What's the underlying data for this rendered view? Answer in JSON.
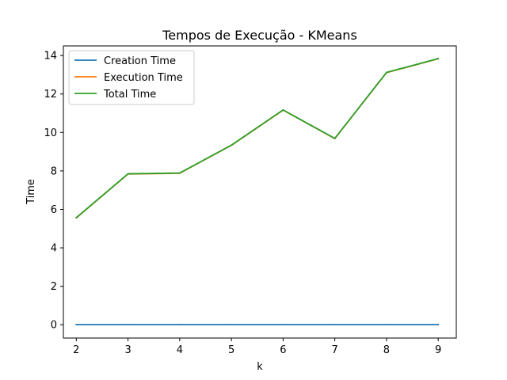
{
  "chart_data": {
    "type": "line",
    "title": "Tempos de Execução - KMeans",
    "xlabel": "k",
    "ylabel": "Time",
    "x": [
      2,
      3,
      4,
      5,
      6,
      7,
      8,
      9
    ],
    "xlim": [
      1.75,
      9.35
    ],
    "ylim": [
      -0.69,
      14.5
    ],
    "xticks": [
      2,
      3,
      4,
      5,
      6,
      7,
      8,
      9
    ],
    "yticks": [
      0,
      2,
      4,
      6,
      8,
      10,
      12,
      14
    ],
    "grid": false,
    "legend_position": "top-left",
    "series": [
      {
        "name": "Creation Time",
        "color": "#1f77b4",
        "values": [
          0.01,
          0.01,
          0.01,
          0.01,
          0.01,
          0.01,
          0.01,
          0.01
        ]
      },
      {
        "name": "Execution Time",
        "color": "#ff7f0e",
        "values": [
          5.56,
          7.84,
          7.88,
          9.33,
          11.16,
          9.68,
          13.11,
          13.83
        ]
      },
      {
        "name": "Total Time",
        "color": "#2ca02c",
        "values": [
          5.57,
          7.85,
          7.89,
          9.34,
          11.17,
          9.69,
          13.12,
          13.84
        ]
      }
    ]
  }
}
